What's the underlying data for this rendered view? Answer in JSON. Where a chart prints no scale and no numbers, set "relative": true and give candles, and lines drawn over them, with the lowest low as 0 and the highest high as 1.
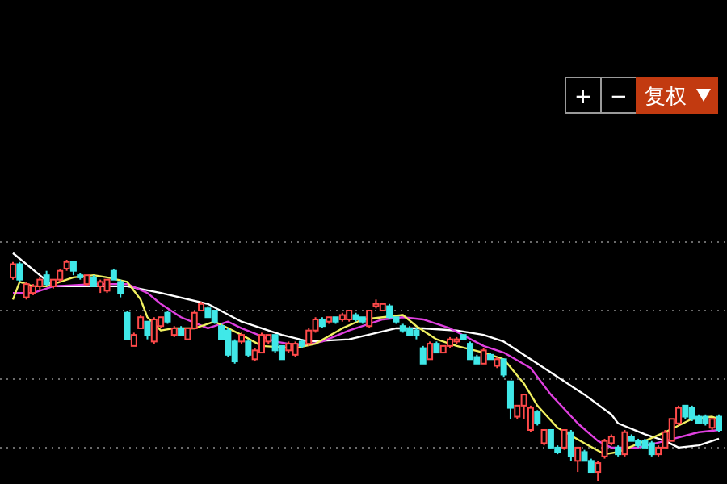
{
  "chart_data": {
    "type": "candlestick",
    "relative": true,
    "grid": "y",
    "annotations": [
      "+",
      "−",
      "复权"
    ],
    "categories": [
      null,
      null,
      null,
      null,
      null,
      null,
      null,
      null,
      null,
      null,
      null,
      null,
      null,
      null,
      null,
      null,
      null,
      null,
      null,
      null,
      null,
      null,
      null,
      null,
      null,
      null,
      null,
      null,
      null,
      null,
      null,
      null,
      null,
      null,
      null,
      null,
      null,
      null,
      null,
      null,
      null,
      null,
      null,
      null,
      null,
      null,
      null,
      null,
      null,
      null,
      null,
      null,
      null,
      null,
      null,
      null,
      null,
      null,
      null,
      null,
      null,
      null,
      null,
      null,
      null,
      null,
      null,
      null,
      null,
      null,
      null,
      null,
      null,
      null,
      null,
      null,
      null,
      null,
      null,
      null,
      null,
      null,
      null,
      null,
      null,
      null,
      null,
      null,
      null,
      null,
      null,
      null,
      null,
      null,
      null,
      null,
      null,
      null,
      null,
      null,
      null,
      null,
      null,
      null,
      null,
      null
    ],
    "ohlc": [
      [
        0.92,
        0.99,
        0.91,
        0.98
      ],
      [
        0.98,
        0.99,
        0.9,
        0.91
      ],
      [
        0.83,
        0.9,
        0.82,
        0.89
      ],
      [
        0.85,
        0.89,
        0.84,
        0.88
      ],
      [
        0.88,
        0.92,
        0.86,
        0.91
      ],
      [
        0.93,
        0.95,
        0.88,
        0.89
      ],
      [
        0.88,
        0.91,
        0.87,
        0.91
      ],
      [
        0.91,
        0.96,
        0.9,
        0.95
      ],
      [
        0.96,
        1,
        0.95,
        0.99
      ],
      [
        0.99,
        0.99,
        0.93,
        0.95
      ],
      [
        0.93,
        0.94,
        0.91,
        0.92
      ],
      [
        0.89,
        0.93,
        0.88,
        0.93
      ],
      [
        0.92,
        0.93,
        0.88,
        0.88
      ],
      [
        0.88,
        0.91,
        0.85,
        0.9
      ],
      [
        0.86,
        0.91,
        0.85,
        0.91
      ],
      [
        0.95,
        0.96,
        0.91,
        0.91
      ],
      [
        0.9,
        0.91,
        0.83,
        0.85
      ],
      [
        0.76,
        0.77,
        0.64,
        0.64
      ],
      [
        0.61,
        0.67,
        0.61,
        0.66
      ],
      [
        0.69,
        0.75,
        0.69,
        0.74
      ],
      [
        0.72,
        0.72,
        0.64,
        0.66
      ],
      [
        0.63,
        0.74,
        0.62,
        0.73
      ],
      [
        0.7,
        0.74,
        0.69,
        0.74
      ],
      [
        0.76,
        0.77,
        0.71,
        0.72
      ],
      [
        0.66,
        0.7,
        0.65,
        0.69
      ],
      [
        0.69,
        0.7,
        0.66,
        0.66
      ],
      [
        0.64,
        0.69,
        0.64,
        0.69
      ],
      [
        0.69,
        0.77,
        0.69,
        0.76
      ],
      [
        0.77,
        0.81,
        0.77,
        0.8
      ],
      [
        0.78,
        0.79,
        0.74,
        0.74
      ],
      [
        0.77,
        0.77,
        0.71,
        0.72
      ],
      [
        0.7,
        0.71,
        0.64,
        0.64
      ],
      [
        0.68,
        0.69,
        0.56,
        0.57
      ],
      [
        0.63,
        0.64,
        0.53,
        0.54
      ],
      [
        0.63,
        0.67,
        0.62,
        0.66
      ],
      [
        0.63,
        0.64,
        0.56,
        0.57
      ],
      [
        0.55,
        0.6,
        0.54,
        0.59
      ],
      [
        0.58,
        0.67,
        0.58,
        0.66
      ],
      [
        0.63,
        0.66,
        0.62,
        0.66
      ],
      [
        0.66,
        0.66,
        0.58,
        0.59
      ],
      [
        0.61,
        0.61,
        0.55,
        0.55
      ],
      [
        0.59,
        0.63,
        0.58,
        0.62
      ],
      [
        0.57,
        0.63,
        0.56,
        0.62
      ],
      [
        0.63,
        0.64,
        0.6,
        0.61
      ],
      [
        0.62,
        0.69,
        0.61,
        0.68
      ],
      [
        0.68,
        0.74,
        0.67,
        0.73
      ],
      [
        0.73,
        0.74,
        0.69,
        0.7
      ],
      [
        0.72,
        0.74,
        0.71,
        0.74
      ],
      [
        0.74,
        0.74,
        0.71,
        0.72
      ],
      [
        0.73,
        0.76,
        0.72,
        0.75
      ],
      [
        0.73,
        0.77,
        0.72,
        0.77
      ],
      [
        0.75,
        0.76,
        0.72,
        0.73
      ],
      [
        0.74,
        0.74,
        0.71,
        0.72
      ],
      [
        0.7,
        0.77,
        0.69,
        0.77
      ],
      [
        0.79,
        0.82,
        0.78,
        0.8
      ],
      [
        0.77,
        0.8,
        0.77,
        0.8
      ],
      [
        0.79,
        0.8,
        0.73,
        0.74
      ],
      [
        0.74,
        0.74,
        0.71,
        0.72
      ],
      [
        0.7,
        0.71,
        0.67,
        0.68
      ],
      [
        0.69,
        0.7,
        0.66,
        0.66
      ],
      [
        0.68,
        0.69,
        0.64,
        0.66
      ],
      [
        0.6,
        0.61,
        0.53,
        0.53
      ],
      [
        0.55,
        0.63,
        0.55,
        0.62
      ],
      [
        0.62,
        0.63,
        0.58,
        0.58
      ],
      [
        0.58,
        0.61,
        0.58,
        0.61
      ],
      [
        0.61,
        0.65,
        0.6,
        0.64
      ],
      [
        0.63,
        0.65,
        0.62,
        0.64
      ],
      [
        0.66,
        0.66,
        0.64,
        0.64
      ],
      [
        0.62,
        0.63,
        0.55,
        0.55
      ],
      [
        0.56,
        0.57,
        0.53,
        0.53
      ],
      [
        0.53,
        0.6,
        0.53,
        0.59
      ],
      [
        0.57,
        0.58,
        0.55,
        0.55
      ],
      [
        0.52,
        0.56,
        0.51,
        0.55
      ],
      [
        0.55,
        0.55,
        0.47,
        0.48
      ],
      [
        0.45,
        0.45,
        0.28,
        0.33
      ],
      [
        0.29,
        0.34,
        0.28,
        0.34
      ],
      [
        0.34,
        0.39,
        0.28,
        0.39
      ],
      [
        0.23,
        0.34,
        0.22,
        0.33
      ],
      [
        0.31,
        0.32,
        0.25,
        0.26
      ],
      [
        0.17,
        0.23,
        0.16,
        0.23
      ],
      [
        0.23,
        0.23,
        0.15,
        0.15
      ],
      [
        0.15,
        0.16,
        0.12,
        0.13
      ],
      [
        0.15,
        0.23,
        0.14,
        0.23
      ],
      [
        0.22,
        0.23,
        0.09,
        0.11
      ],
      [
        0.09,
        0.15,
        0.04,
        0.15
      ],
      [
        0.13,
        0.14,
        0.09,
        0.09
      ],
      [
        0.09,
        0.1,
        0.04,
        0.04
      ],
      [
        0.04,
        0.09,
        0,
        0.08
      ],
      [
        0.11,
        0.19,
        0.1,
        0.18
      ],
      [
        0.17,
        0.21,
        0.16,
        0.2
      ],
      [
        0.15,
        0.16,
        0.11,
        0.12
      ],
      [
        0.12,
        0.23,
        0.11,
        0.22
      ],
      [
        0.2,
        0.21,
        0.18,
        0.18
      ],
      [
        0.18,
        0.19,
        0.15,
        0.16
      ],
      [
        0.18,
        0.19,
        0.15,
        0.15
      ],
      [
        0.17,
        0.18,
        0.11,
        0.12
      ],
      [
        0.12,
        0.16,
        0.11,
        0.15
      ],
      [
        0.15,
        0.23,
        0.15,
        0.22
      ],
      [
        0.18,
        0.28,
        0.18,
        0.28
      ],
      [
        0.26,
        0.34,
        0.25,
        0.33
      ],
      [
        0.34,
        0.34,
        0.28,
        0.29
      ],
      [
        0.33,
        0.34,
        0.27,
        0.28
      ],
      [
        0.29,
        0.3,
        0.26,
        0.26
      ],
      [
        0.29,
        0.3,
        0.25,
        0.26
      ],
      [
        0.24,
        0.28,
        0.23,
        0.28
      ],
      [
        0.29,
        0.3,
        0.22,
        0.23
      ]
    ],
    "series": [
      {
        "type": "line",
        "color": "#ffffff",
        "values": [
          1.03,
          null,
          null,
          null,
          0.93,
          null,
          0.88,
          null,
          null,
          null,
          null,
          null,
          0.88,
          null,
          null,
          null,
          null,
          0.88,
          null,
          null,
          null,
          null,
          0.85,
          null,
          null,
          null,
          null,
          null,
          null,
          0.8,
          null,
          null,
          null,
          null,
          0.72,
          null,
          null,
          null,
          null,
          null,
          0.66,
          null,
          null,
          null,
          0.63,
          null,
          null,
          null,
          null,
          null,
          0.64,
          null,
          null,
          null,
          null,
          null,
          null,
          0.69,
          null,
          null,
          null,
          0.69,
          null,
          null,
          null,
          null,
          0.68,
          null,
          null,
          null,
          0.66,
          null,
          null,
          0.63,
          null,
          null,
          null,
          null,
          0.53,
          null,
          null,
          null,
          null,
          null,
          null,
          0.39,
          null,
          null,
          null,
          0.3,
          0.26,
          null,
          null,
          null,
          0.21,
          null,
          null,
          0.18,
          null,
          0.15,
          null,
          null,
          0.16,
          null,
          null,
          0.19
        ]
      },
      {
        "type": "line",
        "color": "#e040e0",
        "values": [
          0.85,
          null,
          null,
          0.85,
          null,
          null,
          0.88,
          null,
          null,
          null,
          null,
          null,
          0.89,
          null,
          null,
          null,
          null,
          0.89,
          null,
          null,
          0.85,
          null,
          0.8,
          null,
          null,
          0.74,
          null,
          null,
          null,
          0.69,
          null,
          null,
          0.72,
          null,
          0.69,
          null,
          null,
          null,
          null,
          0.63,
          null,
          null,
          null,
          0.61,
          null,
          null,
          0.63,
          null,
          null,
          null,
          0.68,
          null,
          null,
          null,
          null,
          0.73,
          null,
          null,
          0.74,
          null,
          null,
          0.73,
          null,
          null,
          null,
          0.69,
          null,
          null,
          null,
          null,
          0.61,
          null,
          null,
          0.58,
          null,
          null,
          null,
          0.51,
          null,
          null,
          0.39,
          null,
          null,
          null,
          0.26,
          null,
          null,
          0.18,
          null,
          0.15,
          null,
          null,
          null,
          0.15,
          null,
          null,
          null,
          0.18,
          null,
          null,
          null,
          null,
          0.22,
          null,
          null,
          0.23
        ]
      },
      {
        "type": "line",
        "color": "#f0f060",
        "values": [
          0.82,
          0.9,
          null,
          0.88,
          null,
          0.88,
          0.89,
          null,
          null,
          0.92,
          null,
          null,
          0.93,
          null,
          0.92,
          null,
          null,
          0.9,
          null,
          0.82,
          0.74,
          null,
          0.68,
          null,
          0.69,
          null,
          null,
          0.69,
          null,
          null,
          0.72,
          null,
          0.69,
          null,
          0.66,
          null,
          null,
          0.61,
          null,
          null,
          null,
          null,
          0.6,
          null,
          null,
          0.62,
          null,
          null,
          null,
          0.69,
          null,
          null,
          0.73,
          null,
          null,
          0.74,
          null,
          null,
          0.75,
          null,
          0.7,
          null,
          null,
          0.64,
          null,
          null,
          0.61,
          null,
          null,
          null,
          0.58,
          null,
          null,
          0.55,
          null,
          null,
          0.44,
          null,
          0.34,
          null,
          null,
          0.24,
          null,
          null,
          null,
          0.17,
          null,
          null,
          0.12,
          null,
          0.13,
          null,
          null,
          null,
          0.18,
          null,
          null,
          0.22,
          null,
          null,
          null,
          0.28,
          null,
          null,
          0.29,
          0.28
        ]
      }
    ]
  }
}
